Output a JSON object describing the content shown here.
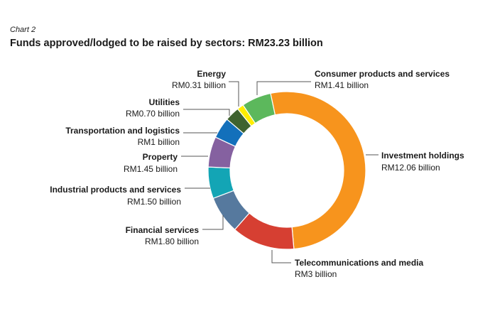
{
  "chart_data": {
    "type": "pie",
    "subtitle": "Chart 2",
    "title": "Funds approved/lodged to be raised by sectors: RM23.23 billion",
    "unit": "RM billion",
    "slices": [
      {
        "label": "Investment holdings",
        "value": 12.06,
        "value_label": "RM12.06 billion",
        "color": "#F7941D"
      },
      {
        "label": "Telecommunications and media",
        "value": 3,
        "value_label": "RM3 billion",
        "color": "#D63F32"
      },
      {
        "label": "Financial services",
        "value": 1.8,
        "value_label": "RM1.80 billion",
        "color": "#56799E"
      },
      {
        "label": "Industrial products and services",
        "value": 1.5,
        "value_label": "RM1.50 billion",
        "color": "#13A5B5"
      },
      {
        "label": "Property",
        "value": 1.45,
        "value_label": "RM1.45 billion",
        "color": "#8561A0"
      },
      {
        "label": "Transportation and logistics",
        "value": 1,
        "value_label": "RM1 billion",
        "color": "#1370BB"
      },
      {
        "label": "Utilities",
        "value": 0.7,
        "value_label": "RM0.70 billion",
        "color": "#3F6330"
      },
      {
        "label": "Energy",
        "value": 0.31,
        "value_label": "RM0.31 billion",
        "color": "#FFED00"
      },
      {
        "label": "Consumer products and services",
        "value": 1.41,
        "value_label": "RM1.41 billion",
        "color": "#5CB85C"
      }
    ]
  }
}
